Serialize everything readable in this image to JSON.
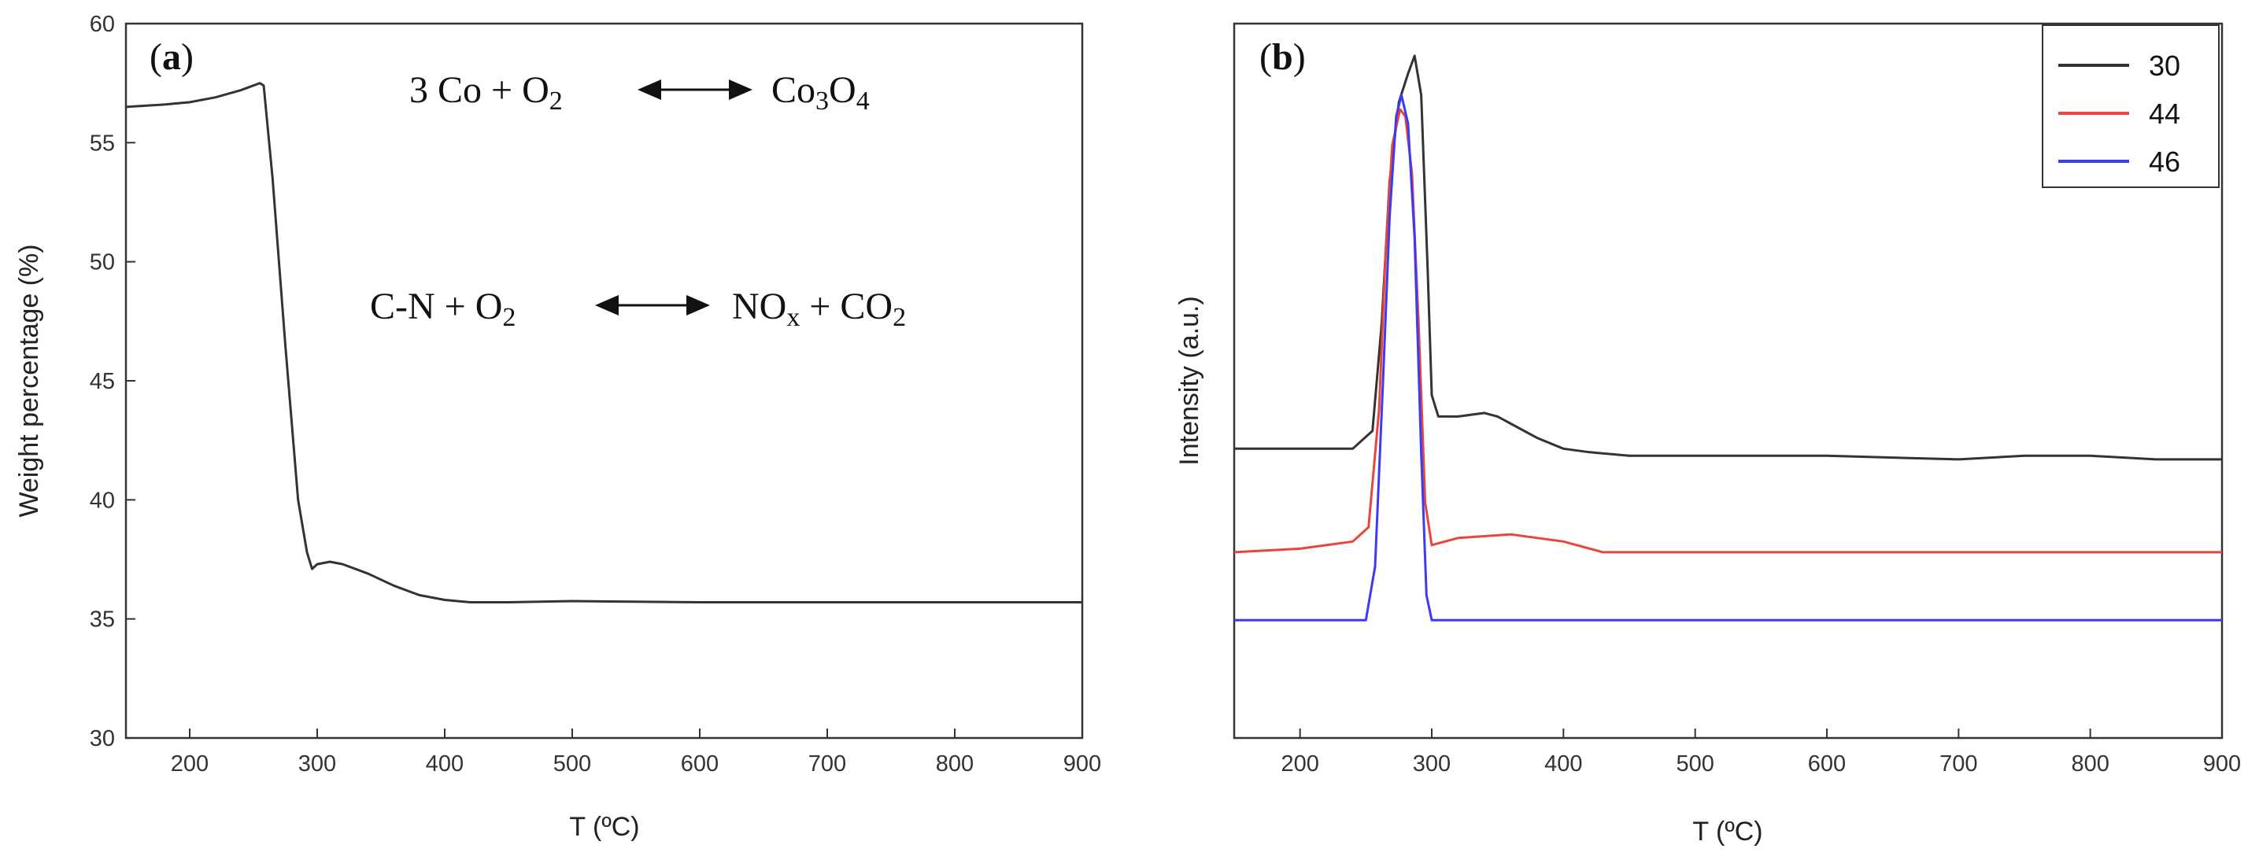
{
  "chart_data": [
    {
      "type": "line",
      "panel": "(a)",
      "panel_letter": "a",
      "xlabel": "T (ºC)",
      "ylabel": "Weight percentage (%)",
      "xlim": [
        150,
        900
      ],
      "ylim": [
        30,
        60
      ],
      "xticks": [
        200,
        300,
        400,
        500,
        600,
        700,
        800,
        900
      ],
      "yticks": [
        30,
        35,
        40,
        45,
        50,
        55,
        60
      ],
      "annotations": [
        {
          "left": "3 Co + O",
          "left_sub": "2",
          "right": "Co",
          "right_sub1": "3",
          "right_mid": "O",
          "right_sub2": "4"
        },
        {
          "left": "C-N + O",
          "left_sub": "2",
          "right": "NO",
          "right_sub1": "x",
          "right_mid": " + CO",
          "right_sub2": "2"
        }
      ],
      "series": [
        {
          "name": "weight",
          "color": "#333333",
          "x": [
            150,
            180,
            200,
            220,
            240,
            255,
            258,
            265,
            275,
            285,
            292,
            296,
            300,
            310,
            320,
            340,
            360,
            380,
            400,
            420,
            450,
            500,
            600,
            700,
            800,
            900
          ],
          "y": [
            56.5,
            56.6,
            56.7,
            56.9,
            57.2,
            57.5,
            57.4,
            53.5,
            46.5,
            40.0,
            37.8,
            37.1,
            37.3,
            37.4,
            37.3,
            36.9,
            36.4,
            36.0,
            35.8,
            35.7,
            35.7,
            35.75,
            35.7,
            35.7,
            35.7,
            35.7
          ]
        }
      ]
    },
    {
      "type": "line",
      "panel": "(b)",
      "panel_letter": "b",
      "xlabel": "T (ºC)",
      "ylabel": "Intensity (a.u.)",
      "xlim": [
        150,
        900
      ],
      "ylim": [
        0,
        10
      ],
      "xticks": [
        200,
        300,
        400,
        500,
        600,
        700,
        800,
        900
      ],
      "yticks": [],
      "legend_position": "top-right",
      "series": [
        {
          "name": "30",
          "color": "#333333",
          "x": [
            150,
            200,
            240,
            255,
            262,
            268,
            275,
            282,
            287,
            292,
            297,
            300,
            305,
            320,
            340,
            350,
            360,
            380,
            400,
            420,
            450,
            500,
            600,
            700,
            750,
            800,
            850,
            900
          ],
          "y": [
            4.05,
            4.05,
            4.05,
            4.3,
            5.8,
            7.8,
            8.9,
            9.3,
            9.55,
            9.0,
            6.5,
            4.8,
            4.5,
            4.5,
            4.55,
            4.5,
            4.4,
            4.2,
            4.05,
            4.0,
            3.95,
            3.95,
            3.95,
            3.9,
            3.95,
            3.95,
            3.9,
            3.9
          ]
        },
        {
          "name": "44",
          "color": "#e8463a",
          "x": [
            150,
            200,
            240,
            252,
            260,
            265,
            270,
            276,
            280,
            285,
            290,
            295,
            300,
            320,
            360,
            400,
            430,
            500,
            600,
            700,
            800,
            900
          ],
          "y": [
            2.6,
            2.65,
            2.75,
            2.95,
            4.6,
            6.8,
            8.3,
            8.8,
            8.7,
            7.9,
            5.8,
            3.3,
            2.7,
            2.8,
            2.85,
            2.75,
            2.6,
            2.6,
            2.6,
            2.6,
            2.6,
            2.6
          ]
        },
        {
          "name": "46",
          "color": "#3b3bf5",
          "x": [
            150,
            200,
            250,
            257,
            263,
            268,
            273,
            277,
            282,
            287,
            292,
            296,
            300,
            320,
            400,
            500,
            600,
            700,
            800,
            900
          ],
          "y": [
            1.65,
            1.65,
            1.65,
            2.4,
            5.0,
            7.3,
            8.7,
            9.0,
            8.6,
            7.0,
            4.0,
            2.0,
            1.65,
            1.65,
            1.65,
            1.65,
            1.65,
            1.65,
            1.65,
            1.65
          ]
        }
      ]
    }
  ]
}
